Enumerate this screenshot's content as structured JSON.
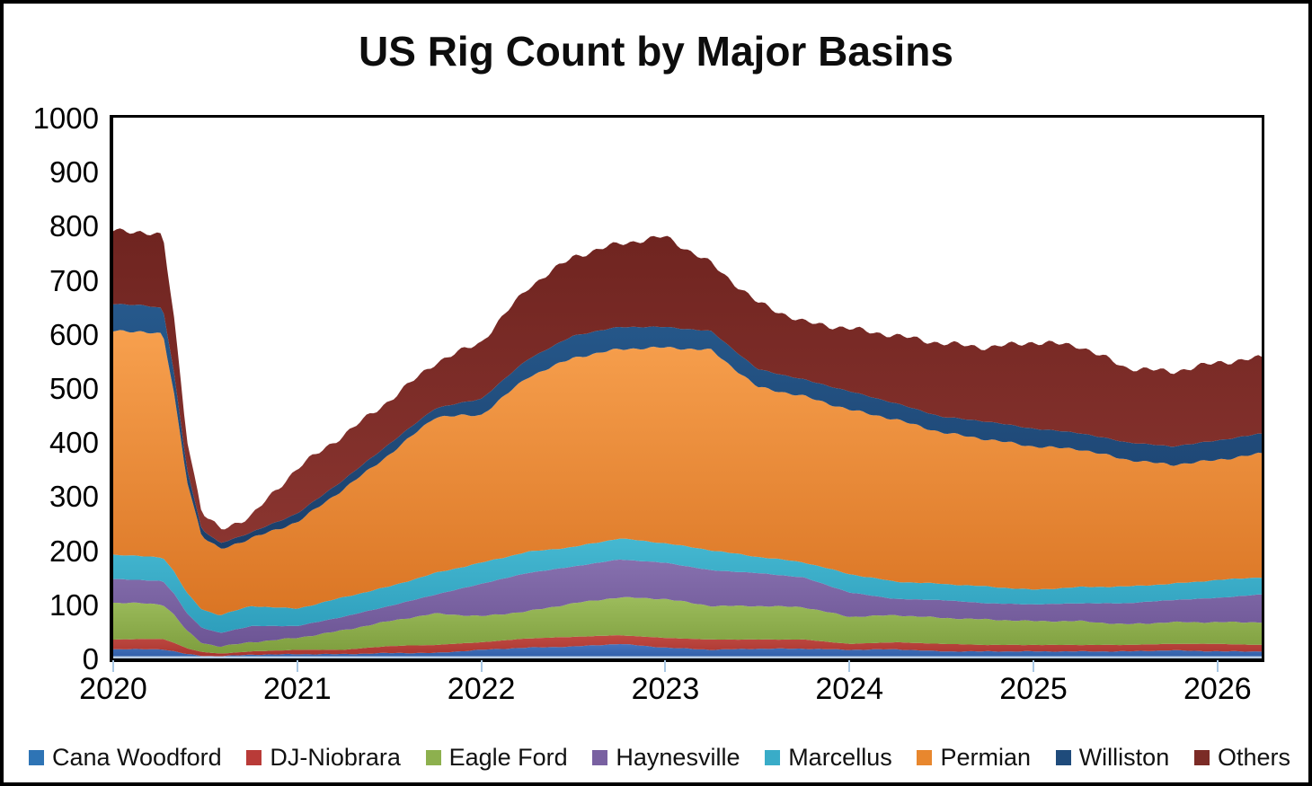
{
  "title": "US Rig Count by Major Basins",
  "chart_data": {
    "type": "area",
    "stacked": true,
    "title": "US Rig Count by Major Basins",
    "xlabel": "",
    "ylabel": "",
    "grid": false,
    "legend_position": "bottom",
    "xlim": [
      2020,
      2026.24
    ],
    "ylim": [
      0,
      1000
    ],
    "x_ticks": [
      2020,
      2021,
      2022,
      2023,
      2024,
      2025,
      2026
    ],
    "x_tick_labels": [
      "2020",
      "2021",
      "2022",
      "2023",
      "2024",
      "2025",
      "2026"
    ],
    "y_ticks": [
      0,
      100,
      200,
      300,
      400,
      500,
      600,
      700,
      800,
      900,
      1000
    ],
    "y_tick_labels": [
      "0",
      "100",
      "200",
      "300",
      "400",
      "500",
      "600",
      "700",
      "800",
      "900",
      "1000"
    ],
    "x": [
      2020.0,
      2020.15,
      2020.27,
      2020.33,
      2020.4,
      2020.48,
      2020.58,
      2020.75,
      2021.0,
      2021.25,
      2021.5,
      2021.75,
      2022.0,
      2022.25,
      2022.5,
      2022.75,
      2023.0,
      2023.25,
      2023.5,
      2023.75,
      2024.0,
      2024.25,
      2024.5,
      2024.75,
      2025.0,
      2025.25,
      2025.5,
      2025.75,
      2026.0,
      2026.22
    ],
    "series": [
      {
        "name": "Cana Woodford",
        "color_top": "#4673BC",
        "color_bottom": "#2F5EA8",
        "legend_color": "#2E74B5",
        "values": [
          17,
          17,
          17,
          13,
          8,
          5,
          4,
          7,
          8,
          8,
          10,
          10,
          16,
          20,
          22,
          27,
          20,
          16,
          18,
          18,
          16,
          17,
          13,
          13,
          13,
          13,
          13,
          15,
          13,
          13
        ]
      },
      {
        "name": "DJ-Niobrara",
        "color_top": "#C04A42",
        "color_bottom": "#A93530",
        "legend_color": "#B93B38",
        "values": [
          18,
          19,
          19,
          16,
          11,
          7,
          5,
          6,
          8,
          8,
          13,
          15,
          14,
          17,
          18,
          16,
          18,
          19,
          17,
          17,
          11,
          13,
          14,
          12,
          12,
          12,
          12,
          12,
          14,
          12
        ]
      },
      {
        "name": "Eagle Ford",
        "color_top": "#9CBC5C",
        "color_bottom": "#7E9E3E",
        "legend_color": "#8DB04E",
        "values": [
          68,
          66,
          64,
          52,
          32,
          17,
          13,
          17,
          22,
          36,
          46,
          58,
          48,
          50,
          62,
          70,
          72,
          62,
          62,
          60,
          50,
          50,
          48,
          47,
          44,
          44,
          38,
          40,
          40,
          42
        ]
      },
      {
        "name": "Haynesville",
        "color_top": "#8670AE",
        "color_bottom": "#6C5494",
        "legend_color": "#7961A1",
        "values": [
          44,
          43,
          43,
          39,
          33,
          28,
          25,
          30,
          22,
          25,
          28,
          35,
          60,
          71,
          68,
          70,
          67,
          66,
          61,
          55,
          45,
          30,
          33,
          30,
          31,
          33,
          39,
          41,
          45,
          51
        ]
      },
      {
        "name": "Marcellus",
        "color_top": "#45B8D1",
        "color_bottom": "#2E9EBC",
        "legend_color": "#39ACC8",
        "values": [
          45,
          44,
          44,
          41,
          37,
          34,
          33,
          37,
          32,
          36,
          36,
          40,
          39,
          39,
          36,
          39,
          36,
          37,
          30,
          28,
          34,
          32,
          30,
          31,
          27,
          30,
          31,
          30,
          33,
          32
        ]
      },
      {
        "name": "Permian",
        "color_top": "#F7A04E",
        "color_bottom": "#DA7524",
        "legend_color": "#E8872E",
        "values": [
          413,
          416,
          412,
          330,
          210,
          135,
          122,
          125,
          160,
          200,
          244,
          289,
          273,
          323,
          350,
          350,
          362,
          370,
          314,
          307,
          304,
          300,
          280,
          272,
          265,
          255,
          235,
          220,
          222,
          228
        ]
      },
      {
        "name": "Williston",
        "color_top": "#26598C",
        "color_bottom": "#1B3F6B",
        "legend_color": "#1F4B7B",
        "values": [
          50,
          49,
          48,
          38,
          22,
          13,
          11,
          11,
          16,
          17,
          20,
          16,
          30,
          33,
          41,
          41,
          38,
          35,
          33,
          31,
          34,
          30,
          29,
          33,
          33,
          30,
          32,
          34,
          36,
          37
        ]
      },
      {
        "name": "Others",
        "color_top": "#6F2420",
        "color_bottom": "#8A3530",
        "legend_color": "#7B2B26",
        "values": [
          135,
          136,
          133,
          101,
          57,
          31,
          25,
          30,
          84,
          83,
          80,
          84,
          105,
          132,
          146,
          154,
          167,
          125,
          123,
          106,
          116,
          125,
          136,
          137,
          160,
          161,
          138,
          138,
          144,
          140
        ]
      }
    ]
  },
  "axis_style": {
    "tick_color": "#a9c7e3",
    "baseline_color": "#b9cde4"
  }
}
